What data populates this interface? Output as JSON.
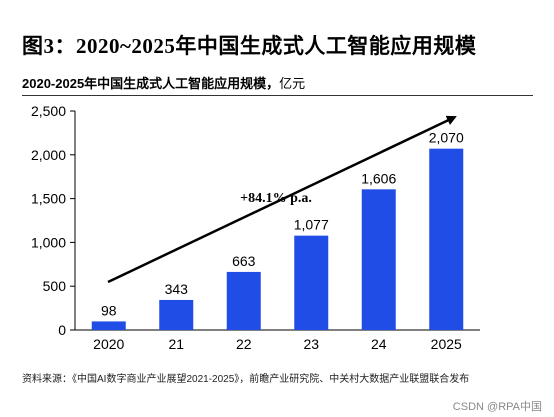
{
  "figure_title": "图3：2020~2025年中国生成式人工智能应用规模",
  "subtitle": {
    "main": "2020-2025年中国生成式人工智能应用规模，",
    "unit": "亿元"
  },
  "source_text": "资料来源：《中国AI数字商业产业展望2021-2025》，前瞻产业研究院、中关村大数据产业联盟联合发布",
  "watermark": "CSDN @RPA中国",
  "colors": {
    "bar": "#1f4de6",
    "arrow": "#000000",
    "axis": "#000000"
  },
  "chart_data": {
    "type": "bar",
    "categories": [
      "2020",
      "21",
      "22",
      "23",
      "24",
      "2025"
    ],
    "values": [
      98,
      343,
      663,
      1077,
      1606,
      2070
    ],
    "value_labels": [
      "98",
      "343",
      "663",
      "1,077",
      "1,606",
      "2,070"
    ],
    "ylim": [
      0,
      2500
    ],
    "yticks": [
      0,
      500,
      1000,
      1500,
      2000,
      2500
    ],
    "ytick_labels": [
      "0",
      "500",
      "1,000",
      "1,500",
      "2,000",
      "2,500"
    ],
    "annotation": "+84.1% p.a.",
    "grid": false,
    "xlabel": "",
    "ylabel": ""
  }
}
